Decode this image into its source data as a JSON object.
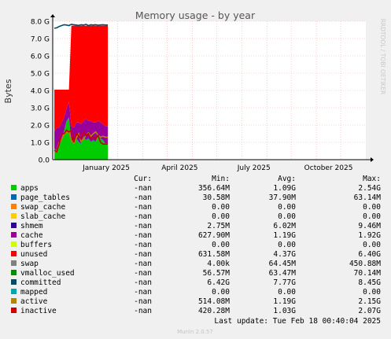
{
  "chart_data": {
    "type": "area",
    "title": "Memory usage - by year",
    "ylabel": "Bytes",
    "side_label": "RRDTOOL / TOBI OETIKER",
    "footer": "Munin 2.0.57",
    "last_update": "Last update: Tue Feb 18 00:40:04 2025",
    "ylim": [
      0,
      8.0
    ],
    "y_unit": "G",
    "yticks": [
      "0.0",
      "1.0 G",
      "2.0 G",
      "3.0 G",
      "4.0 G",
      "5.0 G",
      "6.0 G",
      "7.0 G",
      "8.0 G"
    ],
    "xticks": [
      "January 2025",
      "April 2025",
      "July 2025",
      "October 2025"
    ],
    "x_range": [
      "2024-12-11",
      "2026-01-01"
    ],
    "x_month_starts": [
      "2025-01-01",
      "2025-02-01",
      "2025-03-01",
      "2025-04-01",
      "2025-05-01",
      "2025-06-01",
      "2025-07-01",
      "2025-08-01",
      "2025-09-01",
      "2025-10-01",
      "2025-11-01",
      "2025-12-01"
    ],
    "x": [
      "2024-12-13",
      "2024-12-16",
      "2024-12-19",
      "2024-12-22",
      "2024-12-25",
      "2024-12-28",
      "2024-12-31",
      "2025-01-03",
      "2025-01-06",
      "2025-01-09",
      "2025-01-12",
      "2025-01-15",
      "2025-01-18",
      "2025-01-21",
      "2025-01-24",
      "2025-01-27",
      "2025-01-30",
      "2025-02-02",
      "2025-02-05",
      "2025-02-08",
      "2025-02-11",
      "2025-02-14",
      "2025-02-17"
    ],
    "stack": [
      {
        "name": "apps",
        "color": "#00cc00",
        "values": [
          0.6,
          0.5,
          0.8,
          1.2,
          1.6,
          2.2,
          2.4,
          1.0,
          0.9,
          1.2,
          1.0,
          0.9,
          1.3,
          1.1,
          1.2,
          1.0,
          1.1,
          1.0,
          1.4,
          1.2,
          1.1,
          0.9,
          0.9
        ]
      },
      {
        "name": "page_tables",
        "color": "#0066b3",
        "values": [
          0.04,
          0.04,
          0.04,
          0.04,
          0.04,
          0.04,
          0.04,
          0.04,
          0.04,
          0.04,
          0.04,
          0.04,
          0.04,
          0.04,
          0.04,
          0.04,
          0.04,
          0.04,
          0.04,
          0.04,
          0.04,
          0.04,
          0.04
        ]
      },
      {
        "name": "swap_cache",
        "color": "#ff8000",
        "values": [
          0,
          0,
          0,
          0,
          0,
          0,
          0,
          0,
          0,
          0,
          0,
          0,
          0,
          0,
          0,
          0,
          0,
          0,
          0,
          0,
          0,
          0,
          0
        ]
      },
      {
        "name": "slab_cache",
        "color": "#ffcc00",
        "values": [
          0,
          0,
          0,
          0,
          0,
          0,
          0,
          0,
          0,
          0,
          0,
          0,
          0,
          0,
          0,
          0,
          0,
          0,
          0,
          0,
          0,
          0,
          0
        ]
      },
      {
        "name": "shmem",
        "color": "#330099",
        "values": [
          0.006,
          0.006,
          0.006,
          0.006,
          0.006,
          0.006,
          0.006,
          0.006,
          0.006,
          0.006,
          0.006,
          0.006,
          0.006,
          0.006,
          0.006,
          0.006,
          0.006,
          0.006,
          0.006,
          0.006,
          0.006,
          0.006,
          0.006
        ]
      },
      {
        "name": "cache",
        "color": "#990099",
        "values": [
          1.0,
          1.3,
          1.0,
          0.9,
          0.8,
          0.7,
          0.9,
          0.9,
          0.9,
          0.9,
          1.1,
          1.1,
          0.9,
          1.2,
          1.0,
          1.2,
          1.0,
          1.1,
          0.8,
          0.9,
          0.9,
          1.0,
          1.0
        ]
      },
      {
        "name": "buffers",
        "color": "#ccff00",
        "values": [
          0,
          0,
          0,
          0,
          0,
          0,
          0,
          0,
          0,
          0,
          0,
          0,
          0,
          0,
          0,
          0,
          0,
          0,
          0,
          0,
          0,
          0,
          0
        ]
      },
      {
        "name": "unused",
        "color": "#ff0000",
        "values": [
          2.4,
          2.2,
          2.2,
          1.9,
          1.6,
          1.1,
          0.7,
          5.8,
          5.9,
          5.6,
          5.6,
          5.7,
          5.5,
          5.4,
          5.5,
          5.5,
          5.6,
          5.6,
          5.5,
          5.6,
          5.7,
          5.8,
          5.8
        ]
      },
      {
        "name": "swap",
        "color": "#808080",
        "values": [
          0,
          0,
          0,
          0,
          0,
          0,
          0,
          0,
          0,
          0,
          0,
          0,
          0,
          0,
          0,
          0,
          0,
          0,
          0,
          0,
          0,
          0,
          0
        ]
      }
    ],
    "lines": [
      {
        "name": "committed",
        "color": "#004c6b",
        "values": [
          7.6,
          7.62,
          7.7,
          7.75,
          7.8,
          7.78,
          7.75,
          7.82,
          7.8,
          7.78,
          7.76,
          7.8,
          7.78,
          7.82,
          7.75,
          7.8,
          7.78,
          7.8,
          7.77,
          7.79,
          7.8,
          7.78,
          7.78
        ]
      },
      {
        "name": "active",
        "color": "#b38600",
        "values": [
          0.55,
          0.5,
          1.0,
          1.15,
          1.45,
          1.55,
          1.6,
          1.1,
          0.95,
          1.25,
          1.5,
          1.05,
          1.2,
          1.4,
          1.55,
          1.35,
          1.5,
          1.6,
          1.4,
          1.3,
          1.35,
          1.3,
          1.3
        ]
      },
      {
        "name": "inactive",
        "color": "#cc0000",
        "values": [
          0.55,
          0.45,
          0.9,
          1.5,
          1.5,
          1.7,
          1.6,
          1.7,
          1.0,
          1.5,
          1.4,
          1.2,
          1.6,
          1.4,
          1.5,
          1.2,
          1.3,
          1.2,
          1.4,
          1.0,
          0.9,
          0.9,
          0.9
        ]
      }
    ],
    "legend_header": {
      "cur": "Cur:",
      "min": "Min:",
      "avg": "Avg:",
      "max": "Max:"
    },
    "legend": [
      {
        "name": "apps",
        "color": "#00cc00",
        "cur": "-nan",
        "min": "356.64M",
        "avg": "1.09G",
        "max": "2.54G"
      },
      {
        "name": "page_tables",
        "color": "#0066b3",
        "cur": "-nan",
        "min": "30.58M",
        "avg": "37.90M",
        "max": "63.14M"
      },
      {
        "name": "swap_cache",
        "color": "#ff8000",
        "cur": "-nan",
        "min": "0.00",
        "avg": "0.00",
        "max": "0.00"
      },
      {
        "name": "slab_cache",
        "color": "#ffcc00",
        "cur": "-nan",
        "min": "0.00",
        "avg": "0.00",
        "max": "0.00"
      },
      {
        "name": "shmem",
        "color": "#330099",
        "cur": "-nan",
        "min": "2.75M",
        "avg": "6.02M",
        "max": "9.46M"
      },
      {
        "name": "cache",
        "color": "#990099",
        "cur": "-nan",
        "min": "627.90M",
        "avg": "1.19G",
        "max": "1.92G"
      },
      {
        "name": "buffers",
        "color": "#ccff00",
        "cur": "-nan",
        "min": "0.00",
        "avg": "0.00",
        "max": "0.00"
      },
      {
        "name": "unused",
        "color": "#ff0000",
        "cur": "-nan",
        "min": "631.58M",
        "avg": "4.37G",
        "max": "6.40G"
      },
      {
        "name": "swap",
        "color": "#808080",
        "cur": "-nan",
        "min": "4.00k",
        "avg": "64.45M",
        "max": "450.88M"
      },
      {
        "name": "vmalloc_used",
        "color": "#008f00",
        "cur": "-nan",
        "min": "56.57M",
        "avg": "63.47M",
        "max": "70.14M"
      },
      {
        "name": "committed",
        "color": "#004c6b",
        "cur": "-nan",
        "min": "6.42G",
        "avg": "7.77G",
        "max": "8.45G"
      },
      {
        "name": "mapped",
        "color": "#00aaaa",
        "cur": "-nan",
        "min": "0.00",
        "avg": "0.00",
        "max": "0.00"
      },
      {
        "name": "active",
        "color": "#b38600",
        "cur": "-nan",
        "min": "514.08M",
        "avg": "1.19G",
        "max": "2.15G"
      },
      {
        "name": "inactive",
        "color": "#cc0000",
        "cur": "-nan",
        "min": "420.28M",
        "avg": "1.03G",
        "max": "2.07G"
      }
    ]
  }
}
